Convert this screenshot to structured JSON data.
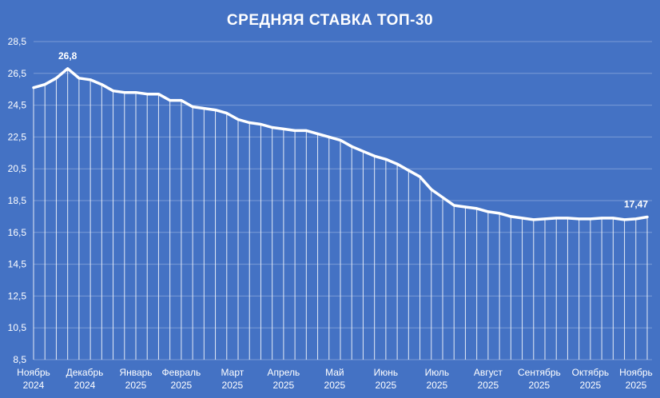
{
  "chart_data": {
    "type": "line",
    "title": "СРЕДНЯЯ СТАВКА ТОП-30",
    "xlabel": "",
    "ylabel": "",
    "ylim": [
      8.5,
      28.5
    ],
    "yticks": [
      "8,5",
      "10,5",
      "12,5",
      "14,5",
      "16,5",
      "18,5",
      "20,5",
      "22,5",
      "24,5",
      "26,5",
      "28,5"
    ],
    "ytick_values": [
      8.5,
      10.5,
      12.5,
      14.5,
      16.5,
      18.5,
      20.5,
      22.5,
      24.5,
      26.5,
      28.5
    ],
    "grid": true,
    "drop_lines": true,
    "month_labels": [
      {
        "line1": "Ноябрь",
        "line2": "2024",
        "index": 0
      },
      {
        "line1": "Декабрь",
        "line2": "2024",
        "index": 4.5
      },
      {
        "line1": "Январь",
        "line2": "2025",
        "index": 9
      },
      {
        "line1": "Февраль",
        "line2": "2025",
        "index": 13
      },
      {
        "line1": "Март",
        "line2": "2025",
        "index": 17.5
      },
      {
        "line1": "Апрель",
        "line2": "2025",
        "index": 22
      },
      {
        "line1": "Май",
        "line2": "2025",
        "index": 26.5
      },
      {
        "line1": "Июнь",
        "line2": "2025",
        "index": 31
      },
      {
        "line1": "Июль",
        "line2": "2025",
        "index": 35.5
      },
      {
        "line1": "Август",
        "line2": "2025",
        "index": 40
      },
      {
        "line1": "Сентябрь",
        "line2": "2025",
        "index": 44.5
      },
      {
        "line1": "Октябрь",
        "line2": "2025",
        "index": 49
      },
      {
        "line1": "Ноябрь",
        "line2": "2025",
        "index": 53.5
      }
    ],
    "series": [
      {
        "values": [
          25.6,
          25.8,
          26.2,
          26.8,
          26.2,
          26.1,
          25.8,
          25.4,
          25.3,
          25.3,
          25.2,
          25.2,
          24.8,
          24.8,
          24.4,
          24.3,
          24.2,
          24.0,
          23.6,
          23.4,
          23.3,
          23.1,
          23.0,
          22.9,
          22.9,
          22.7,
          22.5,
          22.3,
          21.9,
          21.6,
          21.3,
          21.1,
          20.8,
          20.4,
          20.0,
          19.2,
          18.7,
          18.2,
          18.1,
          18.0,
          17.8,
          17.7,
          17.5,
          17.4,
          17.3,
          17.35,
          17.4,
          17.4,
          17.35,
          17.35,
          17.4,
          17.4,
          17.3,
          17.35,
          17.47
        ]
      }
    ],
    "data_labels": [
      {
        "index": 3,
        "text": "26,8"
      },
      {
        "index": 54,
        "text": "17,47"
      }
    ],
    "colors": {
      "background": "#4472c4",
      "line": "#ffffff",
      "grid": "#7a9bd6"
    }
  }
}
